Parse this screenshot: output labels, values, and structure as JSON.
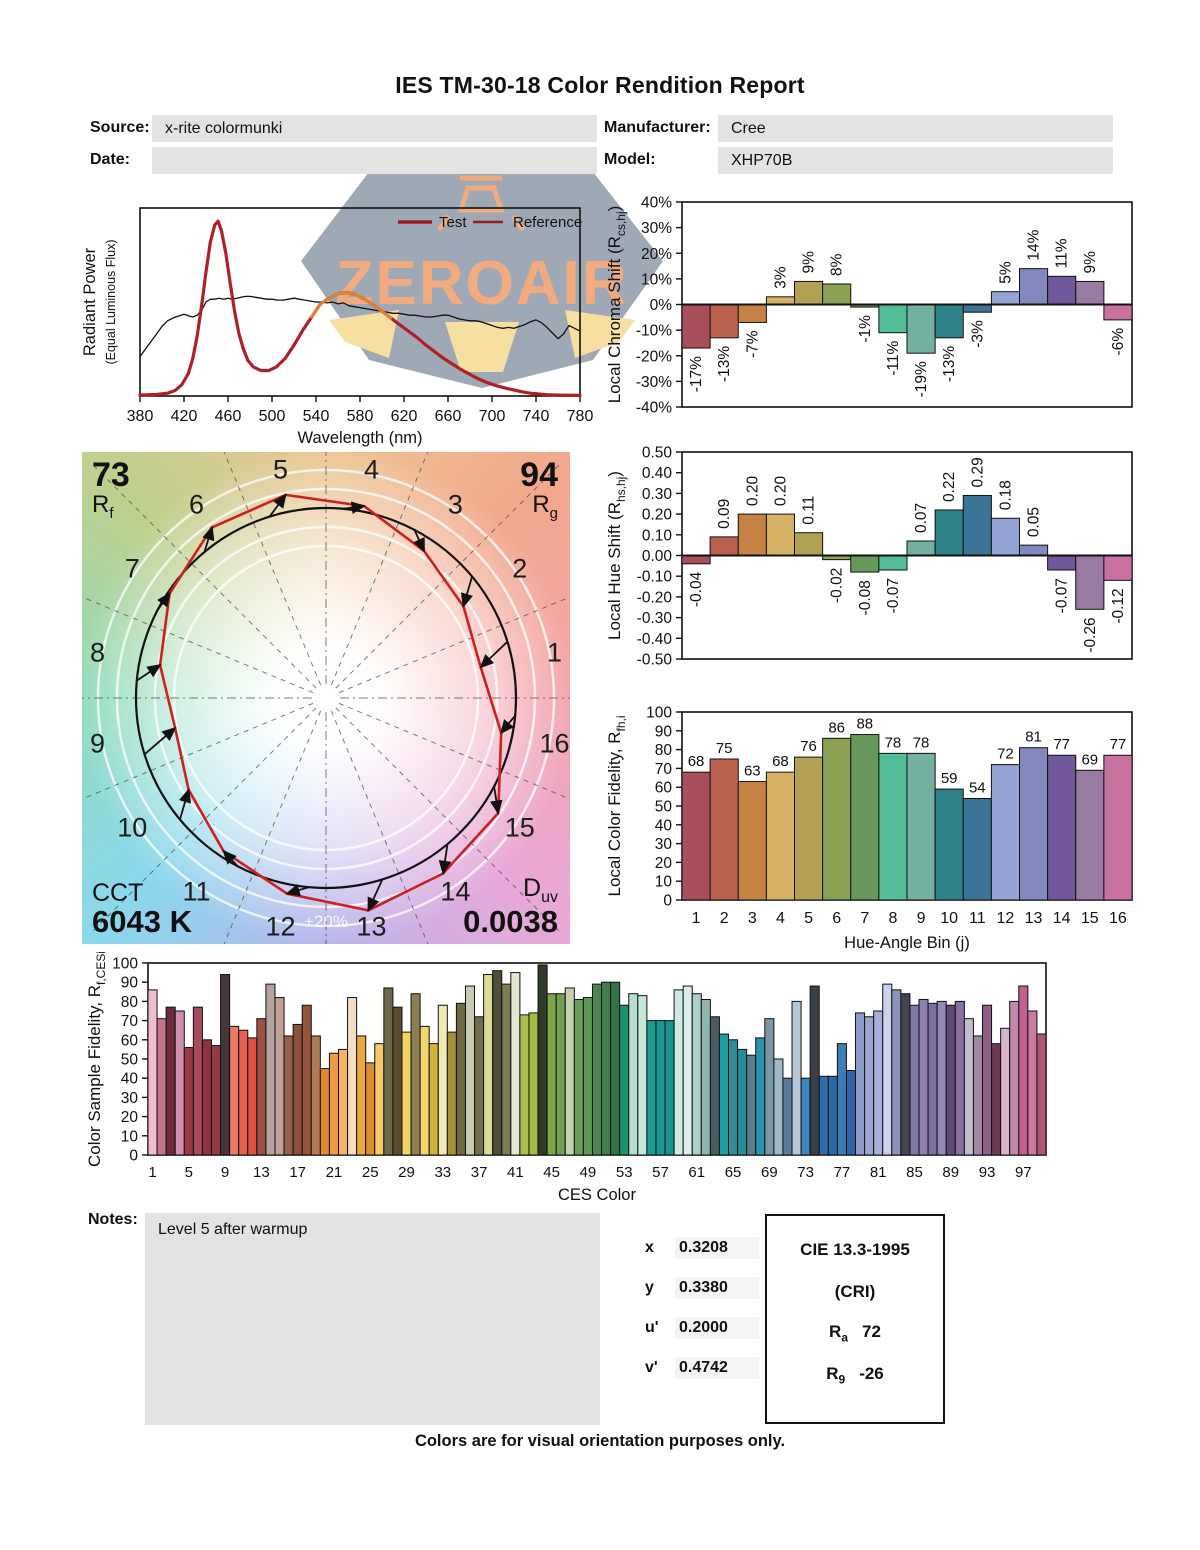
{
  "header": {
    "title": "IES TM-30-18 Color Rendition Report"
  },
  "meta": {
    "source_label": "Source:",
    "source_value": "x-rite colormunki",
    "date_label": "Date:",
    "date_value": "",
    "manufacturer_label": "Manufacturer:",
    "manufacturer_value": "Cree",
    "model_label": "Model:",
    "model_value": "XHP70B"
  },
  "watermark": {
    "text": "ZEROAIR",
    "gray": "#98a2af",
    "orange": "#f2ab7e",
    "yellow": "#f6dfa0"
  },
  "palette16": [
    "#a84f5c",
    "#bb6150",
    "#c68245",
    "#d5b166",
    "#b2a152",
    "#8ba255",
    "#67985a",
    "#53bd98",
    "#74b0a2",
    "#2e8289",
    "#3b7496",
    "#93a3d4",
    "#8287bc",
    "#70589b",
    "#977ba0",
    "#c9719f"
  ],
  "circle": {
    "rf_value": "73",
    "rf_pre": "R",
    "rf_sub": "f",
    "rg_value": "94",
    "rg_pre": "R",
    "rg_sub": "g",
    "cct_label": "CCT",
    "cct_value": "6043 K",
    "duv_pre": "D",
    "duv_sub": "uv",
    "duv_value": "0.0038",
    "ring_label": "+20%",
    "bins": [
      "1",
      "2",
      "3",
      "4",
      "5",
      "6",
      "7",
      "8",
      "9",
      "10",
      "11",
      "12",
      "13",
      "14",
      "15",
      "16"
    ],
    "test_color": "#cf1f1f",
    "reference_color": "#111111"
  },
  "chart_data": [
    {
      "id": "spd",
      "type": "line",
      "xlabel": "Wavelength (nm)",
      "ylabel": "Radiant Power",
      "ylabel2": "(Equal Luminous Flux)",
      "xlim": [
        380,
        780
      ],
      "ylim": [
        0,
        1
      ],
      "xticks": [
        380,
        420,
        460,
        500,
        540,
        580,
        620,
        660,
        700,
        740,
        780
      ],
      "legend": [
        {
          "name": "Test",
          "color": "#9b1c20"
        },
        {
          "name": "Reference",
          "color": "#9b1c20"
        }
      ],
      "highlight": [
        536,
        608
      ],
      "highlight_color": "#e0832e",
      "series": [
        {
          "name": "Test",
          "color": "#b01f24",
          "width": 3.2,
          "points": [
            [
              380,
              0.005
            ],
            [
              395,
              0.008
            ],
            [
              405,
              0.015
            ],
            [
              412,
              0.03
            ],
            [
              418,
              0.06
            ],
            [
              424,
              0.12
            ],
            [
              428,
              0.2
            ],
            [
              432,
              0.32
            ],
            [
              436,
              0.48
            ],
            [
              440,
              0.66
            ],
            [
              444,
              0.82
            ],
            [
              448,
              0.91
            ],
            [
              451,
              0.93
            ],
            [
              454,
              0.88
            ],
            [
              458,
              0.76
            ],
            [
              462,
              0.6
            ],
            [
              466,
              0.45
            ],
            [
              470,
              0.33
            ],
            [
              474,
              0.25
            ],
            [
              478,
              0.19
            ],
            [
              483,
              0.155
            ],
            [
              490,
              0.135
            ],
            [
              497,
              0.135
            ],
            [
              504,
              0.155
            ],
            [
              512,
              0.2
            ],
            [
              520,
              0.27
            ],
            [
              528,
              0.35
            ],
            [
              536,
              0.42
            ],
            [
              544,
              0.49
            ],
            [
              552,
              0.52
            ],
            [
              560,
              0.545
            ],
            [
              568,
              0.55
            ],
            [
              576,
              0.54
            ],
            [
              584,
              0.515
            ],
            [
              592,
              0.485
            ],
            [
              600,
              0.45
            ],
            [
              608,
              0.415
            ],
            [
              616,
              0.38
            ],
            [
              624,
              0.345
            ],
            [
              632,
              0.31
            ],
            [
              640,
              0.27
            ],
            [
              648,
              0.235
            ],
            [
              656,
              0.2
            ],
            [
              664,
              0.17
            ],
            [
              672,
              0.14
            ],
            [
              680,
              0.115
            ],
            [
              688,
              0.09
            ],
            [
              696,
              0.07
            ],
            [
              704,
              0.055
            ],
            [
              712,
              0.042
            ],
            [
              720,
              0.032
            ],
            [
              728,
              0.022
            ],
            [
              736,
              0.014
            ],
            [
              750,
              0.007
            ],
            [
              765,
              0.004
            ],
            [
              780,
              0.003
            ]
          ]
        },
        {
          "name": "Reference",
          "color": "#111111",
          "width": 1.3,
          "points": [
            [
              380,
              0.21
            ],
            [
              385,
              0.25
            ],
            [
              390,
              0.29
            ],
            [
              395,
              0.33
            ],
            [
              400,
              0.37
            ],
            [
              405,
              0.4
            ],
            [
              410,
              0.415
            ],
            [
              415,
              0.425
            ],
            [
              420,
              0.435
            ],
            [
              425,
              0.425
            ],
            [
              428,
              0.42
            ],
            [
              432,
              0.43
            ],
            [
              436,
              0.455
            ],
            [
              440,
              0.5
            ],
            [
              444,
              0.515
            ],
            [
              448,
              0.515
            ],
            [
              452,
              0.52
            ],
            [
              456,
              0.515
            ],
            [
              460,
              0.52
            ],
            [
              464,
              0.515
            ],
            [
              468,
              0.52
            ],
            [
              472,
              0.525
            ],
            [
              476,
              0.53
            ],
            [
              480,
              0.53
            ],
            [
              485,
              0.525
            ],
            [
              490,
              0.52
            ],
            [
              495,
              0.515
            ],
            [
              500,
              0.515
            ],
            [
              505,
              0.51
            ],
            [
              510,
              0.51
            ],
            [
              515,
              0.515
            ],
            [
              520,
              0.52
            ],
            [
              525,
              0.515
            ],
            [
              530,
              0.51
            ],
            [
              535,
              0.505
            ],
            [
              540,
              0.5
            ],
            [
              545,
              0.5
            ],
            [
              550,
              0.495
            ],
            [
              555,
              0.5
            ],
            [
              560,
              0.49
            ],
            [
              565,
              0.495
            ],
            [
              570,
              0.48
            ],
            [
              575,
              0.475
            ],
            [
              580,
              0.47
            ],
            [
              585,
              0.465
            ],
            [
              590,
              0.46
            ],
            [
              595,
              0.455
            ],
            [
              600,
              0.45
            ],
            [
              605,
              0.445
            ],
            [
              610,
              0.44
            ],
            [
              615,
              0.44
            ],
            [
              620,
              0.435
            ],
            [
              625,
              0.43
            ],
            [
              630,
              0.43
            ],
            [
              635,
              0.425
            ],
            [
              640,
              0.42
            ],
            [
              645,
              0.42
            ],
            [
              650,
              0.425
            ],
            [
              655,
              0.43
            ],
            [
              660,
              0.43
            ],
            [
              665,
              0.42
            ],
            [
              670,
              0.41
            ],
            [
              675,
              0.405
            ],
            [
              680,
              0.4
            ],
            [
              685,
              0.4
            ],
            [
              690,
              0.395
            ],
            [
              695,
              0.385
            ],
            [
              700,
              0.375
            ],
            [
              705,
              0.365
            ],
            [
              710,
              0.36
            ],
            [
              715,
              0.365
            ],
            [
              720,
              0.36
            ],
            [
              725,
              0.37
            ],
            [
              730,
              0.38
            ],
            [
              735,
              0.395
            ],
            [
              740,
              0.405
            ],
            [
              745,
              0.39
            ],
            [
              750,
              0.365
            ],
            [
              755,
              0.335
            ],
            [
              760,
              0.305
            ],
            [
              765,
              0.33
            ],
            [
              770,
              0.375
            ],
            [
              775,
              0.36
            ],
            [
              780,
              0.345
            ]
          ]
        }
      ]
    },
    {
      "id": "chroma",
      "type": "bar",
      "ylabel_pre": "Local Chroma Shift (R",
      "ylabel_sub": "cs,hj",
      "ylabel_post": ")",
      "ylim": [
        -40,
        40
      ],
      "ytick_step": 10,
      "values": [
        -17,
        -13,
        -7,
        3,
        9,
        8,
        -1,
        -11,
        -19,
        -13,
        -3,
        5,
        14,
        11,
        9,
        -6
      ],
      "labels": [
        "-17%",
        "-13%",
        "-7%",
        "3%",
        "9%",
        "8%",
        "-1%",
        "-11%",
        "-19%",
        "-13%",
        "-3%",
        "5%",
        "14%",
        "11%",
        "9%",
        "-6%"
      ]
    },
    {
      "id": "hueshift",
      "type": "bar",
      "ylabel_pre": "Local Hue Shift (R",
      "ylabel_sub": "hs,hj",
      "ylabel_post": ")",
      "ylim": [
        -0.5,
        0.5
      ],
      "ytick_step": 0.1,
      "values": [
        -0.04,
        0.09,
        0.2,
        0.2,
        0.11,
        -0.02,
        -0.08,
        -0.07,
        0.07,
        0.22,
        0.29,
        0.18,
        0.05,
        -0.07,
        -0.26,
        -0.12
      ],
      "labels": [
        "-0.04",
        "0.09",
        "0.20",
        "0.20",
        "0.11",
        "-0.02",
        "-0.08",
        "-0.07",
        "0.07",
        "0.22",
        "0.29",
        "0.18",
        "0.05",
        "-0.07",
        "-0.26",
        "-0.12"
      ]
    },
    {
      "id": "rfh",
      "type": "bar",
      "ylabel_pre": "Local Color Fidelity, R",
      "ylabel_sub": "fh,i",
      "ylabel_post": "",
      "xlabel": "Hue-Angle Bin (j)",
      "ylim": [
        0,
        100
      ],
      "ytick_step": 10,
      "categories": [
        "1",
        "2",
        "3",
        "4",
        "5",
        "6",
        "7",
        "8",
        "9",
        "10",
        "11",
        "12",
        "13",
        "14",
        "15",
        "16"
      ],
      "values": [
        68,
        75,
        63,
        68,
        76,
        86,
        88,
        78,
        78,
        59,
        54,
        72,
        81,
        77,
        69,
        77
      ]
    },
    {
      "id": "ces",
      "type": "bar",
      "ylabel_pre": "Color Sample Fidelity, R",
      "ylabel_sub": "f,CESi",
      "ylabel_post": "",
      "xlabel": "CES Color",
      "ylim": [
        0,
        100
      ],
      "ytick_step": 10,
      "xticks_bars": [
        1,
        5,
        9,
        13,
        17,
        21,
        25,
        29,
        33,
        37,
        41,
        45,
        49,
        53,
        57,
        61,
        65,
        69,
        73,
        77,
        81,
        85,
        89,
        93,
        97
      ],
      "values": [
        86,
        71,
        77,
        75,
        56,
        77,
        60,
        57,
        94,
        67,
        65,
        61,
        71,
        89,
        82,
        62,
        68,
        78,
        62,
        45,
        53,
        55,
        82,
        62,
        48,
        58,
        87,
        77,
        64,
        84,
        67,
        58,
        78,
        64,
        79,
        88,
        72,
        94,
        96,
        89,
        95,
        73,
        74,
        99,
        84,
        84,
        87,
        81,
        82,
        89,
        90,
        90,
        78,
        84,
        83,
        70,
        70,
        70,
        86,
        88,
        84,
        81,
        72,
        63,
        60,
        55,
        52,
        61,
        71,
        50,
        40,
        80,
        40,
        88,
        41,
        41,
        58,
        44,
        74,
        72,
        75,
        89,
        86,
        84,
        78,
        81,
        79,
        80,
        78,
        80,
        71,
        62,
        78,
        58,
        66,
        80,
        88,
        75,
        63
      ],
      "colors": [
        "#edbecd",
        "#c4728f",
        "#6b2d3c",
        "#cf8fae",
        "#9c3a44",
        "#a84a5e",
        "#8d3240",
        "#933a44",
        "#45363c",
        "#e97b63",
        "#e4604f",
        "#de5245",
        "#9c5046",
        "#b4a39e",
        "#bda096",
        "#96604a",
        "#8a5138",
        "#94543c",
        "#b07c57",
        "#e08b33",
        "#f09a45",
        "#f7b261",
        "#f2dfc3",
        "#eaa93f",
        "#d98f2b",
        "#f7c969",
        "#6f684c",
        "#5c4c30",
        "#f2d363",
        "#8d7f52",
        "#f1d66b",
        "#cfb13b",
        "#f2eab5",
        "#a6913a",
        "#6f6844",
        "#cbcbb3",
        "#726c4c",
        "#dcdc95",
        "#50503a",
        "#7d7d54",
        "#e3e7d0",
        "#adbc4d",
        "#a1bc41",
        "#303a28",
        "#7ca54c",
        "#6fa055",
        "#c3d3ab",
        "#6c9c5c",
        "#609858",
        "#4c8450",
        "#407c4c",
        "#327244",
        "#17946c",
        "#b5dfcc",
        "#c4e7d8",
        "#1b9c90",
        "#199894",
        "#179490",
        "#cdebe3",
        "#d8efed",
        "#acd0c8",
        "#90b4b0",
        "#4a5a60",
        "#1c9ea0",
        "#318c94",
        "#219098",
        "#5c808c",
        "#2a94ac",
        "#7b96a5",
        "#9fb9c9",
        "#5a7c96",
        "#b7c6d6",
        "#3d85ba",
        "#3a4048",
        "#2f6ea6",
        "#2a6aa4",
        "#3e7cb4",
        "#2f62a8",
        "#8e9cc9",
        "#98a6d0",
        "#a7aed8",
        "#ccd2ec",
        "#8b93bb",
        "#43454f",
        "#7d7aa6",
        "#8f7fb4",
        "#7d6f9e",
        "#9786b8",
        "#5f4a74",
        "#8a6fa0",
        "#c3bccb",
        "#a287a2",
        "#8f5f85",
        "#6d3a56",
        "#d8b4c8",
        "#c487ad",
        "#c2608f",
        "#c97ba0",
        "#b05577"
      ]
    }
  ],
  "chromaticity": {
    "rows": [
      {
        "label": "x",
        "value": "0.3208"
      },
      {
        "label": "y",
        "value": "0.3380"
      },
      {
        "label": "u'",
        "value": "0.2000"
      },
      {
        "label": "v'",
        "value": "0.4742"
      }
    ]
  },
  "cri_box": {
    "line1": "CIE 13.3-1995",
    "line2": "(CRI)",
    "ra_pre": "R",
    "ra_sub": "a",
    "ra_value": "72",
    "r9_pre": "R",
    "r9_sub": "9",
    "r9_value": "-26"
  },
  "notes": {
    "label": "Notes:",
    "text": "Level 5 after warmup"
  },
  "footer": "Colors are for visual orientation purposes only."
}
